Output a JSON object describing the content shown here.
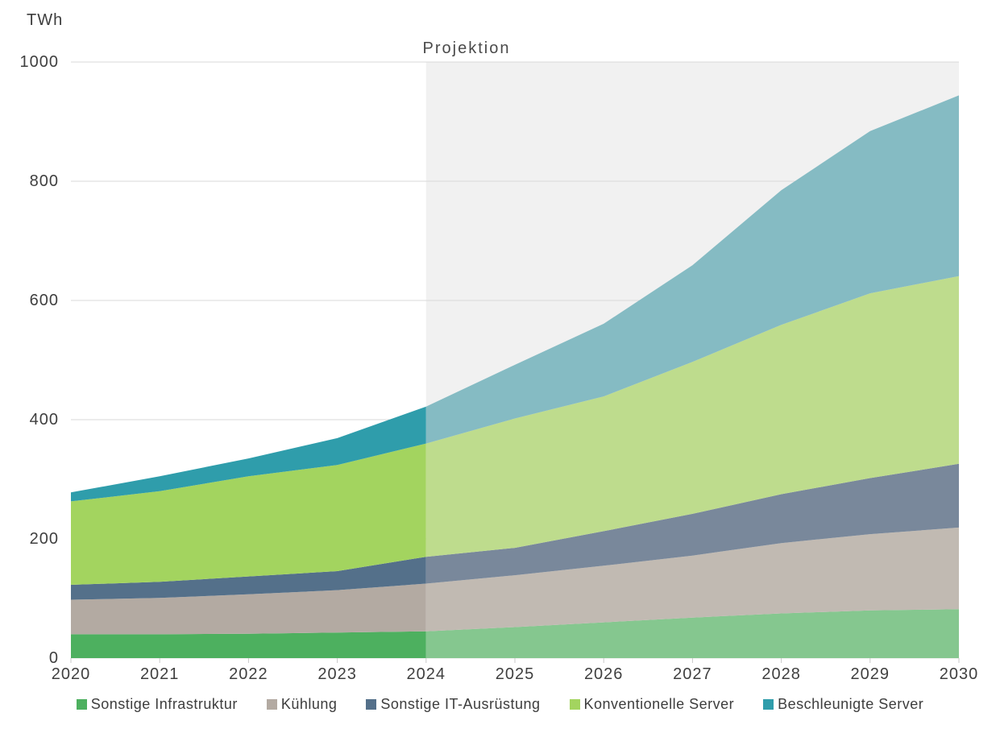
{
  "chart_data": {
    "type": "area",
    "stacked": true,
    "title": "",
    "unit_label": "TWh",
    "ylabel": "TWh",
    "ylim": [
      0,
      1000
    ],
    "y_ticks": [
      0,
      200,
      400,
      600,
      800,
      1000
    ],
    "grid": true,
    "legend_position": "bottom",
    "categories": [
      2020,
      2021,
      2022,
      2023,
      2024,
      2025,
      2026,
      2027,
      2028,
      2029,
      2030
    ],
    "projection_start": 2024,
    "projection_label": "Projektion",
    "projection_band_color": "#f1f1f1",
    "gridline_color": "#d9d9d9",
    "axis_line_color": "#e3e3e3",
    "tick_mark_color": "#c9c9c9",
    "series": [
      {
        "name": "Sonstige Infrastruktur",
        "values": [
          40,
          40,
          41,
          43,
          45,
          52,
          60,
          68,
          75,
          80,
          82
        ],
        "color": "#4db05f",
        "color_projected": "#85c78f"
      },
      {
        "name": "Kühlung",
        "values": [
          58,
          61,
          66,
          71,
          80,
          87,
          95,
          104,
          118,
          128,
          137
        ],
        "color": "#b3aaa2",
        "color_projected": "#c1bab2"
      },
      {
        "name": "Sonstige IT-Ausrüstung",
        "values": [
          25,
          27,
          30,
          32,
          45,
          46,
          58,
          70,
          82,
          94,
          107
        ],
        "color": "#54708a",
        "color_projected": "#79889b"
      },
      {
        "name": "Konventionelle Server",
        "values": [
          140,
          152,
          168,
          178,
          190,
          217,
          226,
          255,
          284,
          310,
          315
        ],
        "color": "#a3d45f",
        "color_projected": "#bedc8d"
      },
      {
        "name": "Beschleunigte Server",
        "values": [
          15,
          25,
          30,
          45,
          62,
          90,
          122,
          162,
          226,
          272,
          303
        ],
        "color": "#2f9dab",
        "color_projected": "#85bbc3"
      }
    ]
  }
}
